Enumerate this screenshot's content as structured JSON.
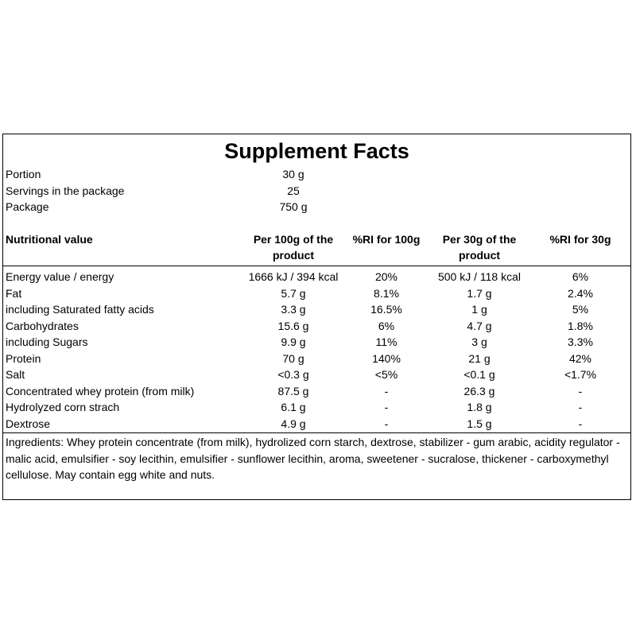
{
  "title": "Supplement Facts",
  "info": [
    {
      "label": "Portion",
      "value": "30 g"
    },
    {
      "label": "Servings in the package",
      "value": "25"
    },
    {
      "label": "Package",
      "value": "750 g"
    }
  ],
  "table": {
    "headers": [
      "Nutritional value",
      "Per 100g of the product",
      "%RI for 100g",
      "Per 30g of the product",
      "%RI for 30g"
    ],
    "rows": [
      [
        "Energy value / energy",
        "1666 kJ / 394 kcal",
        "20%",
        "500 kJ / 118 kcal",
        "6%"
      ],
      [
        "Fat",
        "5.7 g",
        "8.1%",
        "1.7 g",
        "2.4%"
      ],
      [
        "including Saturated fatty acids",
        "3.3 g",
        "16.5%",
        "1 g",
        "5%"
      ],
      [
        "Carbohydrates",
        "15.6 g",
        "6%",
        "4.7 g",
        "1.8%"
      ],
      [
        "including Sugars",
        "9.9 g",
        "11%",
        "3 g",
        "3.3%"
      ],
      [
        "Protein",
        "70 g",
        "140%",
        "21 g",
        "42%"
      ],
      [
        "Salt",
        "<0.3 g",
        "<5%",
        "<0.1 g",
        "<1.7%"
      ],
      [
        "Concentrated whey protein (from milk)",
        "87.5 g",
        "-",
        "26.3 g",
        "-"
      ],
      [
        "Hydrolyzed corn strach",
        "6.1 g",
        "-",
        "1.8 g",
        "-"
      ],
      [
        "Dextrose",
        "4.9 g",
        "-",
        "1.5 g",
        "-"
      ]
    ]
  },
  "ingredients": "Ingredients: Whey protein concentrate (from milk), hydrolized corn starch, dextrose, stabilizer - gum arabic, acidity regulator - malic acid, emulsifier - soy lecithin, emulsifier - sunflower lecithin, aroma, sweetener - sucralose, thickener - carboxymethyl cellulose. May contain egg white and nuts."
}
